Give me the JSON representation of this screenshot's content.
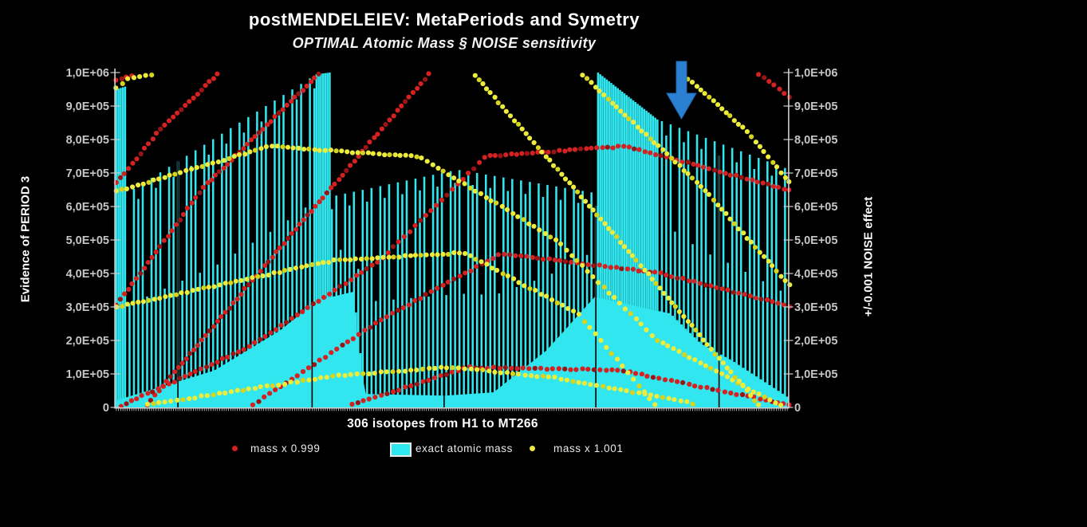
{
  "page": {
    "background": "#000000"
  },
  "header": {
    "title": "postMENDELEIEV: MetaPeriods and Symetry",
    "subtitle": "OPTIMAL Atomic Mass § NOISE sensitivity"
  },
  "axes": {
    "left_title": "Evidence of PERIOD 3",
    "right_title": "+/-0.001 NOISE effect",
    "x_title": "306 isotopes from H1 to MT266",
    "ytick_labels": [
      "0",
      "1,0E+05",
      "2,0E+05",
      "3,0E+05",
      "4,0E+05",
      "5,0E+05",
      "6,0E+05",
      "7,0E+05",
      "8,0E+05",
      "9,0E+05",
      "1,0E+06"
    ],
    "axis_color": "#cfcfcf",
    "tick_label_color": "#c6c6c6"
  },
  "legend": [
    {
      "marker": "dot",
      "color": "#d42121",
      "label": "mass x 0.999"
    },
    {
      "marker": "swatch",
      "color": "#30e6ef",
      "label": "exact atomic mass"
    },
    {
      "marker": "dot",
      "color": "#edec3c",
      "label": "mass x 1.001"
    }
  ],
  "annotation": {
    "type": "down-arrow",
    "color": "#2b80d2",
    "edge": "#1f67b0"
  },
  "chart_data": {
    "type": "bar",
    "subtype": "dense bar comb with two scatter dot series (values wrap as diagonal stripes)",
    "x_count": 306,
    "x_axis": "306 isotopes from H1 to MT266",
    "ylim": [
      0,
      1000000
    ],
    "grid": false,
    "legend_position": "bottom",
    "bars": {
      "name": "exact atomic mass",
      "color": "#31e6ee",
      "stagger_drop": 38000,
      "mid_blend": 0.45,
      "tall_envelope": [
        [
          0,
          950000
        ],
        [
          4,
          958000
        ],
        [
          5,
          640000
        ],
        [
          91,
          995000
        ],
        [
          97,
          1000000
        ],
        [
          98,
          630000
        ],
        [
          155,
          710000
        ],
        [
          218,
          640000
        ],
        [
          219,
          1000000
        ],
        [
          246,
          860000
        ],
        [
          306,
          710000
        ]
      ],
      "mass_envelope": [
        [
          0,
          20000
        ],
        [
          45,
          110000
        ],
        [
          75,
          230000
        ],
        [
          92,
          320000
        ],
        [
          108,
          345000
        ],
        [
          113,
          40000
        ],
        [
          150,
          35000
        ],
        [
          172,
          45000
        ],
        [
          196,
          170000
        ],
        [
          218,
          330000
        ],
        [
          252,
          280000
        ],
        [
          266,
          190000
        ],
        [
          280,
          140000
        ],
        [
          306,
          28000
        ]
      ],
      "tall_groups": [
        [
          0,
          4
        ],
        [
          91,
          97
        ],
        [
          219,
          246
        ]
      ],
      "separators": [
        28,
        89,
        149,
        218,
        274
      ]
    },
    "scatter": {
      "red": {
        "name": "mass x 0.999",
        "color": "#d42121",
        "color_dark": "#9b1414",
        "stripes": [
          [
            [
              0,
              975000
            ],
            [
              7,
              992000
            ]
          ],
          [
            [
              0,
              670000
            ],
            [
              20,
              830000
            ],
            [
              46,
              995000
            ]
          ],
          [
            [
              0,
              305000
            ],
            [
              40,
              660000
            ],
            [
              92,
              995000
            ]
          ],
          [
            [
              14,
              8000
            ],
            [
              80,
              520000
            ],
            [
              142,
              995000
            ]
          ],
          [
            [
              2,
              4000
            ],
            [
              60,
              180000
            ],
            [
              120,
              440000
            ],
            [
              168,
              750000
            ],
            [
              232,
              780000
            ],
            [
              306,
              648000
            ]
          ],
          [
            [
              62,
              8000
            ],
            [
              120,
              260000
            ],
            [
              175,
              460000
            ],
            [
              248,
              400000
            ],
            [
              306,
              303000
            ]
          ],
          [
            [
              107,
              8000
            ],
            [
              160,
              120000
            ],
            [
              228,
              112000
            ],
            [
              306,
              8000
            ]
          ],
          [
            [
              292,
              995000
            ],
            [
              306,
              928000
            ]
          ]
        ]
      },
      "yellow": {
        "name": "mass x 1.001",
        "color": "#edec3c",
        "color_dark": "#d6d41e",
        "stripes": [
          [
            [
              0,
              952000
            ],
            [
              6,
              985000
            ],
            [
              16,
              992000
            ]
          ],
          [
            [
              0,
              645000
            ],
            [
              70,
              780000
            ],
            [
              138,
              748000
            ],
            [
              200,
              500000
            ],
            [
              246,
              200000
            ],
            [
              302,
              6000
            ]
          ],
          [
            [
              212,
              992000
            ],
            [
              266,
              660000
            ],
            [
              306,
              365000
            ]
          ],
          [
            [
              258,
              992000
            ],
            [
              286,
              830000
            ],
            [
              306,
              672000
            ]
          ],
          [
            [
              163,
              992000
            ],
            [
              226,
              520000
            ],
            [
              292,
              8000
            ]
          ],
          [
            [
              0,
              300000
            ],
            [
              100,
              440000
            ],
            [
              158,
              462000
            ],
            [
              210,
              280000
            ],
            [
              245,
              8000
            ]
          ],
          [
            [
              14,
              8000
            ],
            [
              100,
              95000
            ],
            [
              152,
              120000
            ],
            [
              200,
              88000
            ],
            [
              262,
              12000
            ]
          ]
        ]
      }
    }
  }
}
